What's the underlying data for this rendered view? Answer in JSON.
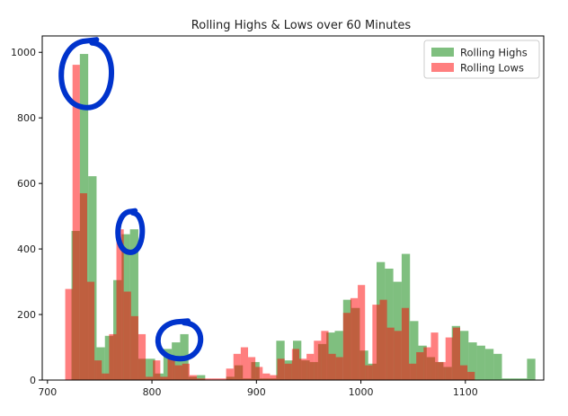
{
  "chart_data": {
    "type": "bar",
    "subtype": "overlapping-histogram",
    "title": "Rolling Highs & Lows over 60 Minutes",
    "xlabel": "",
    "ylabel": "",
    "xlim": [
      695,
      1175
    ],
    "ylim": [
      0,
      1050
    ],
    "xticks": [
      700,
      800,
      900,
      1000,
      1100
    ],
    "yticks": [
      0,
      200,
      400,
      600,
      800,
      1000
    ],
    "grid": false,
    "legend_position": "top-right",
    "alpha": 0.5,
    "series": [
      {
        "name": "Rolling Highs",
        "color": "#008000",
        "bins": [
          [
            723,
            731,
            455
          ],
          [
            731,
            739,
            995
          ],
          [
            739,
            747,
            622
          ],
          [
            747,
            755,
            100
          ],
          [
            755,
            763,
            135
          ],
          [
            763,
            771,
            305
          ],
          [
            771,
            779,
            445
          ],
          [
            779,
            787,
            460
          ],
          [
            787,
            795,
            65
          ],
          [
            795,
            803,
            65
          ],
          [
            803,
            811,
            20
          ],
          [
            811,
            819,
            95
          ],
          [
            819,
            827,
            115
          ],
          [
            827,
            835,
            140
          ],
          [
            835,
            843,
            10
          ],
          [
            843,
            851,
            15
          ],
          [
            871,
            879,
            10
          ],
          [
            879,
            887,
            45
          ],
          [
            887,
            895,
            5
          ],
          [
            895,
            903,
            55
          ],
          [
            903,
            911,
            5
          ],
          [
            911,
            919,
            5
          ],
          [
            919,
            927,
            120
          ],
          [
            927,
            935,
            60
          ],
          [
            935,
            943,
            120
          ],
          [
            943,
            951,
            60
          ],
          [
            951,
            959,
            55
          ],
          [
            959,
            967,
            110
          ],
          [
            967,
            975,
            145
          ],
          [
            975,
            983,
            150
          ],
          [
            983,
            991,
            245
          ],
          [
            991,
            999,
            220
          ],
          [
            999,
            1007,
            90
          ],
          [
            1007,
            1015,
            50
          ],
          [
            1015,
            1023,
            360
          ],
          [
            1023,
            1031,
            340
          ],
          [
            1031,
            1039,
            300
          ],
          [
            1039,
            1047,
            385
          ],
          [
            1047,
            1055,
            180
          ],
          [
            1055,
            1063,
            105
          ],
          [
            1063,
            1071,
            70
          ],
          [
            1071,
            1079,
            55
          ],
          [
            1079,
            1087,
            40
          ],
          [
            1087,
            1095,
            165
          ],
          [
            1095,
            1103,
            150
          ],
          [
            1103,
            1111,
            115
          ],
          [
            1111,
            1119,
            105
          ],
          [
            1119,
            1127,
            95
          ],
          [
            1127,
            1135,
            80
          ],
          [
            1135,
            1143,
            5
          ],
          [
            1143,
            1151,
            5
          ],
          [
            1151,
            1159,
            5
          ],
          [
            1159,
            1167,
            65
          ]
        ]
      },
      {
        "name": "Rolling Lows",
        "color": "#ff0000",
        "bins": [
          [
            717,
            724,
            278
          ],
          [
            724,
            731,
            962
          ],
          [
            731,
            738,
            570
          ],
          [
            738,
            745,
            300
          ],
          [
            745,
            752,
            60
          ],
          [
            752,
            759,
            20
          ],
          [
            759,
            766,
            140
          ],
          [
            766,
            773,
            460
          ],
          [
            773,
            780,
            270
          ],
          [
            780,
            787,
            195
          ],
          [
            787,
            794,
            140
          ],
          [
            794,
            801,
            10
          ],
          [
            801,
            808,
            60
          ],
          [
            808,
            815,
            10
          ],
          [
            815,
            822,
            70
          ],
          [
            822,
            829,
            45
          ],
          [
            829,
            836,
            50
          ],
          [
            836,
            843,
            15
          ],
          [
            843,
            850,
            5
          ],
          [
            850,
            857,
            5
          ],
          [
            857,
            864,
            5
          ],
          [
            864,
            871,
            5
          ],
          [
            871,
            878,
            35
          ],
          [
            878,
            885,
            80
          ],
          [
            885,
            892,
            100
          ],
          [
            892,
            899,
            70
          ],
          [
            899,
            906,
            40
          ],
          [
            906,
            913,
            20
          ],
          [
            913,
            920,
            15
          ],
          [
            920,
            927,
            65
          ],
          [
            927,
            934,
            50
          ],
          [
            934,
            941,
            95
          ],
          [
            941,
            948,
            65
          ],
          [
            948,
            955,
            80
          ],
          [
            955,
            962,
            120
          ],
          [
            962,
            969,
            150
          ],
          [
            969,
            976,
            80
          ],
          [
            976,
            983,
            70
          ],
          [
            983,
            990,
            205
          ],
          [
            990,
            997,
            250
          ],
          [
            997,
            1004,
            290
          ],
          [
            1004,
            1011,
            45
          ],
          [
            1011,
            1018,
            230
          ],
          [
            1018,
            1025,
            245
          ],
          [
            1025,
            1032,
            160
          ],
          [
            1032,
            1039,
            150
          ],
          [
            1039,
            1046,
            220
          ],
          [
            1046,
            1053,
            50
          ],
          [
            1053,
            1060,
            85
          ],
          [
            1060,
            1067,
            100
          ],
          [
            1067,
            1074,
            145
          ],
          [
            1074,
            1081,
            55
          ],
          [
            1081,
            1088,
            130
          ],
          [
            1088,
            1095,
            160
          ],
          [
            1095,
            1102,
            45
          ],
          [
            1102,
            1109,
            25
          ]
        ]
      }
    ],
    "annotations": [
      {
        "type": "hand-drawn-circle",
        "color": "#0033cc",
        "around": {
          "x": 737,
          "y": 930
        }
      },
      {
        "type": "hand-drawn-circle",
        "color": "#0033cc",
        "around": {
          "x": 779,
          "y": 450
        }
      },
      {
        "type": "hand-drawn-circle",
        "color": "#0033cc",
        "around": {
          "x": 826,
          "y": 120
        }
      }
    ]
  }
}
